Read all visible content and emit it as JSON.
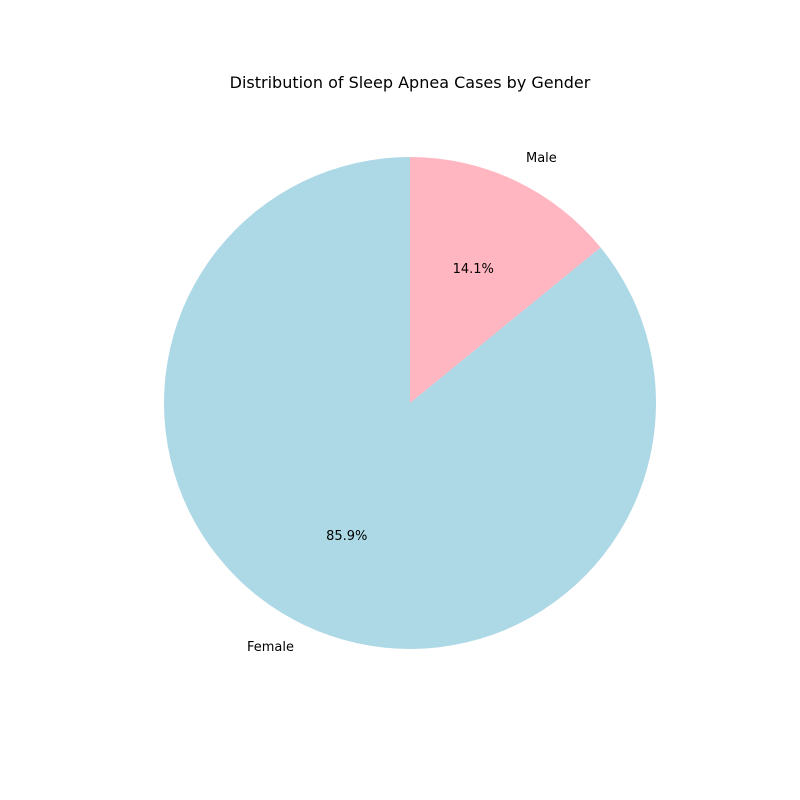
{
  "chart_data": {
    "type": "pie",
    "title": "Distribution of Sleep Apnea Cases by Gender",
    "start_angle_deg": 90,
    "direction": "counterclockwise",
    "slices": [
      {
        "label": "Female",
        "percent": 85.9,
        "percent_label": "85.9%",
        "color": "#add8e6"
      },
      {
        "label": "Male",
        "percent": 14.1,
        "percent_label": "14.1%",
        "color": "#ffb6c1"
      }
    ]
  }
}
